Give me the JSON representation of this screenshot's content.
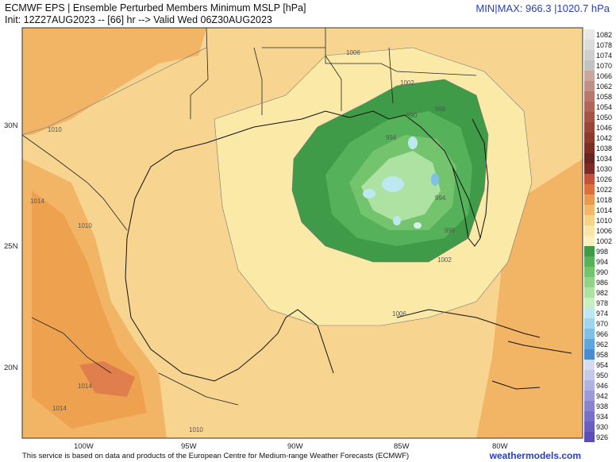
{
  "header": {
    "title": "ECMWF EPS | Ensemble Perturbed Members Minimum MSLP [hPa]",
    "subtitle": "Init: 12Z27AUG2023 -- [66] hr --> Valid Wed 06Z30AUG2023",
    "minmax": "MIN|MAX: 966.3 |1020.7 hPa"
  },
  "map": {
    "lat_labels": [
      "30N",
      "25N",
      "20N"
    ],
    "lon_labels": [
      "100W",
      "95W",
      "90W",
      "85W",
      "80W"
    ],
    "contour_labels": [
      "1006",
      "1002",
      "998",
      "990",
      "994",
      "994",
      "998",
      "1002",
      "1006",
      "1010",
      "1014",
      "1010",
      "1014",
      "1014",
      "1010"
    ]
  },
  "colorbar": {
    "levels": [
      "1082",
      "1078",
      "1074",
      "1070",
      "1066",
      "1062",
      "1058",
      "1054",
      "1050",
      "1046",
      "1042",
      "1038",
      "1034",
      "1030",
      "1026",
      "1022",
      "1018",
      "1014",
      "1010",
      "1006",
      "1002",
      "998",
      "994",
      "990",
      "986",
      "982",
      "978",
      "974",
      "970",
      "966",
      "962",
      "958",
      "954",
      "950",
      "946",
      "942",
      "938",
      "934",
      "930",
      "926"
    ],
    "colors": [
      "#e8e8e8",
      "#dcdcdc",
      "#cfcfcf",
      "#c2c2c2",
      "#c9a79f",
      "#c08f85",
      "#b8796c",
      "#b06658",
      "#a65345",
      "#9c4438",
      "#8f382e",
      "#7c2d26",
      "#6a241f",
      "#7f2a26",
      "#c0523e",
      "#d9703e",
      "#e89a4e",
      "#f0b868",
      "#f5d489",
      "#f8e5a8",
      "#fbefbe",
      "#3f9b47",
      "#56b25a",
      "#73c46d",
      "#92d487",
      "#aee2a2",
      "#c9eec2",
      "#bde8f0",
      "#9fd6ec",
      "#7fc0e6",
      "#5fa6dc",
      "#4a8ccf",
      "#d6dcf0",
      "#c4c9ea",
      "#b0b2e2",
      "#9c9ad8",
      "#8a84cf",
      "#786fc6",
      "#6a5fbe",
      "#5b4fb6"
    ]
  },
  "footer": {
    "attribution": "This service is based on data and products of the European Centre for Medium-range Weather Forecasts (ECMWF)",
    "brand": "weathermodels.com"
  }
}
